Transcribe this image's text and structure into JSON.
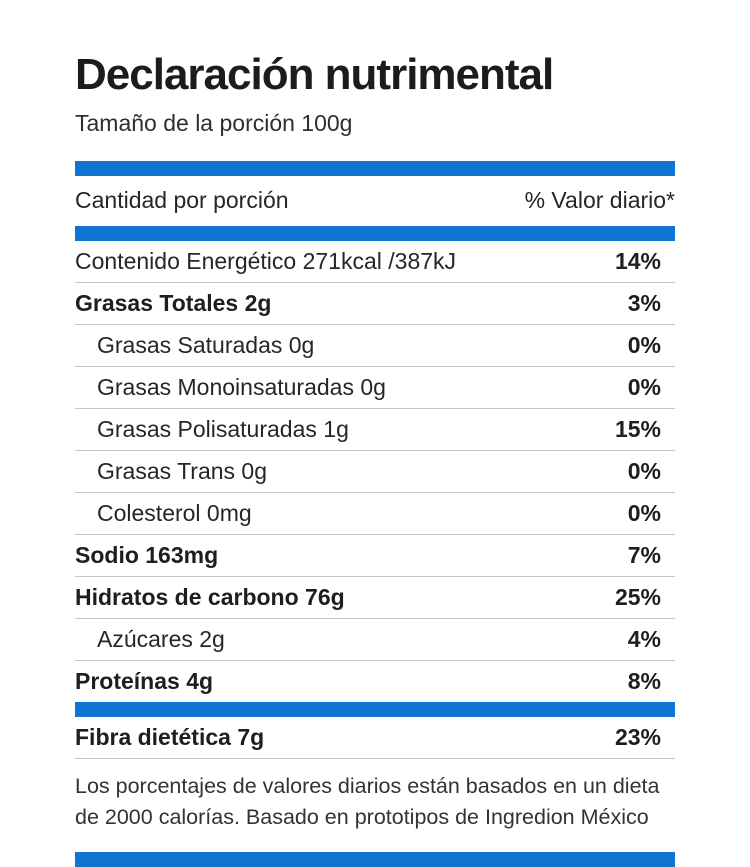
{
  "accent_color": "#1173d2",
  "title": "Declaración nutrimental",
  "serving_size": "Tamaño de la porción 100g",
  "header": {
    "left": "Cantidad por porción",
    "right": "% Valor diario*"
  },
  "rows": [
    {
      "label": "Contenido Energético 271kcal /387kJ",
      "value": "14%"
    },
    {
      "label": "Grasas Totales 2g",
      "value": "3%"
    },
    {
      "label": "Grasas Saturadas 0g",
      "value": "0%"
    },
    {
      "label": "Grasas Monoinsaturadas 0g",
      "value": "0%"
    },
    {
      "label": "Grasas Polisaturadas 1g",
      "value": "15%"
    },
    {
      "label": "Grasas Trans 0g",
      "value": "0%"
    },
    {
      "label": "Colesterol 0mg",
      "value": "0%"
    },
    {
      "label": "Sodio 163mg",
      "value": "7%"
    },
    {
      "label": "Hidratos de carbono 76g",
      "value": "25%"
    },
    {
      "label": "Azúcares 2g",
      "value": "4%"
    },
    {
      "label": "Proteínas 4g",
      "value": "8%"
    },
    {
      "label": "Fibra dietética 7g",
      "value": "23%"
    }
  ],
  "footnote": "Los porcentajes de valores diarios están basados en un dieta de 2000 calorías. Basado en prototipos de Ingredion México"
}
